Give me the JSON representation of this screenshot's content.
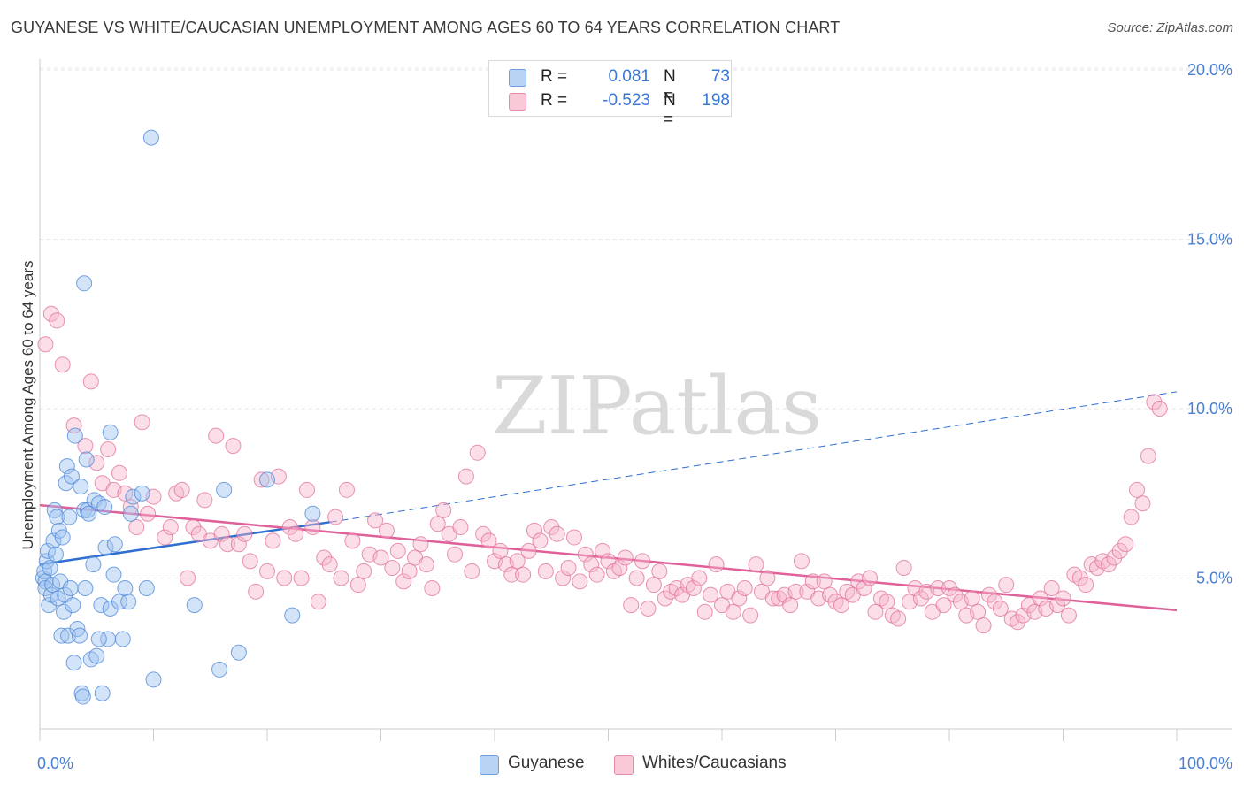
{
  "title": "GUYANESE VS WHITE/CAUCASIAN UNEMPLOYMENT AMONG AGES 60 TO 64 YEARS CORRELATION CHART",
  "source": "Source: ZipAtlas.com",
  "watermark": "ZIPatlas",
  "legend_top": {
    "rows": [
      {
        "r_label": "R =",
        "r_value": "0.081",
        "n_label": "N =",
        "n_value": "73",
        "color": "#a9c8f0",
        "border": "#6f9fe0"
      },
      {
        "r_label": "R =",
        "r_value": "-0.523",
        "n_label": "N =",
        "n_value": "198",
        "color": "#f7b9cc",
        "border": "#e88aa8"
      }
    ]
  },
  "legend_bottom": [
    {
      "label": "Guyanese",
      "color": "#b9d3f5",
      "border": "#6f9fe0"
    },
    {
      "label": "Whites/Caucasians",
      "color": "#f9c9d7",
      "border": "#e88aa8"
    }
  ],
  "chart_data": {
    "type": "scatter",
    "title": "GUYANESE VS WHITE/CAUCASIAN UNEMPLOYMENT AMONG AGES 60 TO 64 YEARS CORRELATION CHART",
    "xlabel": "",
    "ylabel": "Unemployment Among Ages 60 to 64 years",
    "xlim": [
      0,
      100
    ],
    "ylim": [
      0,
      20.5
    ],
    "x_tick_labels": [
      "0.0%",
      "100.0%"
    ],
    "y_ticks": [
      5,
      10,
      15,
      20
    ],
    "y_tick_labels": [
      "5.0%",
      "10.0%",
      "15.0%",
      "20.0%"
    ],
    "grid": true,
    "colors": {
      "guyanese": "#4a86d8",
      "guyanese_fill": "rgba(160,196,240,0.45)",
      "whites": "#e0709a",
      "whites_fill": "rgba(247,182,203,0.45)",
      "axis_text": "#4a7fd1"
    },
    "series": [
      {
        "name": "Guyanese",
        "trend": {
          "x": [
            0,
            25.5
          ],
          "y": [
            5.4,
            6.65
          ],
          "dashed_to": [
            100,
            10.5
          ]
        },
        "points": [
          [
            0.3,
            5.0
          ],
          [
            0.4,
            5.2
          ],
          [
            0.5,
            4.9
          ],
          [
            0.5,
            4.7
          ],
          [
            0.6,
            5.5
          ],
          [
            0.7,
            5.8
          ],
          [
            0.8,
            4.2
          ],
          [
            0.9,
            5.3
          ],
          [
            1.0,
            4.5
          ],
          [
            1.1,
            4.8
          ],
          [
            1.2,
            6.1
          ],
          [
            1.3,
            7.0
          ],
          [
            1.4,
            5.7
          ],
          [
            1.5,
            6.8
          ],
          [
            1.6,
            4.4
          ],
          [
            1.7,
            6.4
          ],
          [
            1.8,
            4.9
          ],
          [
            1.9,
            3.3
          ],
          [
            2.0,
            6.2
          ],
          [
            2.1,
            4.0
          ],
          [
            2.2,
            4.5
          ],
          [
            2.3,
            7.8
          ],
          [
            2.4,
            8.3
          ],
          [
            2.5,
            3.3
          ],
          [
            2.6,
            6.8
          ],
          [
            2.7,
            4.7
          ],
          [
            2.8,
            8.0
          ],
          [
            2.9,
            4.2
          ],
          [
            3.0,
            2.5
          ],
          [
            3.1,
            9.2
          ],
          [
            3.3,
            3.5
          ],
          [
            3.5,
            3.3
          ],
          [
            3.7,
            1.6
          ],
          [
            3.8,
            1.5
          ],
          [
            3.9,
            7.0
          ],
          [
            4.0,
            4.7
          ],
          [
            4.1,
            8.5
          ],
          [
            4.2,
            7.0
          ],
          [
            4.3,
            6.9
          ],
          [
            4.5,
            2.6
          ],
          [
            4.7,
            5.4
          ],
          [
            4.8,
            7.3
          ],
          [
            5.0,
            2.7
          ],
          [
            5.2,
            7.2
          ],
          [
            5.4,
            4.2
          ],
          [
            5.5,
            1.6
          ],
          [
            5.7,
            7.1
          ],
          [
            5.8,
            5.9
          ],
          [
            6.0,
            3.2
          ],
          [
            6.2,
            4.1
          ],
          [
            6.5,
            5.1
          ],
          [
            6.6,
            6.0
          ],
          [
            7.0,
            4.3
          ],
          [
            7.3,
            3.2
          ],
          [
            7.5,
            4.7
          ],
          [
            7.8,
            4.3
          ],
          [
            8.0,
            6.9
          ],
          [
            8.2,
            7.4
          ],
          [
            9.0,
            7.5
          ],
          [
            9.4,
            4.7
          ],
          [
            10.0,
            2.0
          ],
          [
            13.6,
            4.2
          ],
          [
            16.2,
            7.6
          ],
          [
            17.5,
            2.8
          ],
          [
            20.0,
            7.9
          ],
          [
            22.2,
            3.9
          ],
          [
            24.0,
            6.9
          ],
          [
            3.9,
            13.7
          ],
          [
            9.8,
            18.0
          ],
          [
            6.2,
            9.3
          ],
          [
            3.6,
            7.7
          ],
          [
            15.8,
            2.3
          ],
          [
            5.2,
            3.2
          ]
        ]
      },
      {
        "name": "Whites/Caucasians",
        "trend": {
          "x": [
            0,
            100
          ],
          "y": [
            7.15,
            4.05
          ]
        },
        "points": [
          [
            0.5,
            11.9
          ],
          [
            1.0,
            12.8
          ],
          [
            1.5,
            12.6
          ],
          [
            2.0,
            11.3
          ],
          [
            3.0,
            9.5
          ],
          [
            4.0,
            8.9
          ],
          [
            4.5,
            10.8
          ],
          [
            5.0,
            8.4
          ],
          [
            5.5,
            7.8
          ],
          [
            6.0,
            8.8
          ],
          [
            6.5,
            7.6
          ],
          [
            7.0,
            8.1
          ],
          [
            7.5,
            7.5
          ],
          [
            8.0,
            7.1
          ],
          [
            8.5,
            6.5
          ],
          [
            9.0,
            9.6
          ],
          [
            9.5,
            6.9
          ],
          [
            10.0,
            7.4
          ],
          [
            11.0,
            6.2
          ],
          [
            11.5,
            6.5
          ],
          [
            12.0,
            7.5
          ],
          [
            12.5,
            7.6
          ],
          [
            13.0,
            5.0
          ],
          [
            13.5,
            6.5
          ],
          [
            14.0,
            6.3
          ],
          [
            14.5,
            7.3
          ],
          [
            15.0,
            6.1
          ],
          [
            15.5,
            9.2
          ],
          [
            16.0,
            6.3
          ],
          [
            16.5,
            6.0
          ],
          [
            17.0,
            8.9
          ],
          [
            17.5,
            6.0
          ],
          [
            18.0,
            6.3
          ],
          [
            18.5,
            5.5
          ],
          [
            19.0,
            4.6
          ],
          [
            19.5,
            7.9
          ],
          [
            20.0,
            5.2
          ],
          [
            20.5,
            6.1
          ],
          [
            21.0,
            8.0
          ],
          [
            21.5,
            5.0
          ],
          [
            22.0,
            6.5
          ],
          [
            22.5,
            6.3
          ],
          [
            23.0,
            5.0
          ],
          [
            23.5,
            7.6
          ],
          [
            24.0,
            6.5
          ],
          [
            24.5,
            4.3
          ],
          [
            25.0,
            5.6
          ],
          [
            25.5,
            5.4
          ],
          [
            26.0,
            6.8
          ],
          [
            26.5,
            5.0
          ],
          [
            27.0,
            7.6
          ],
          [
            27.5,
            6.1
          ],
          [
            28.0,
            4.8
          ],
          [
            28.5,
            5.2
          ],
          [
            29.0,
            5.7
          ],
          [
            29.5,
            6.7
          ],
          [
            30.0,
            5.6
          ],
          [
            30.5,
            6.4
          ],
          [
            31.0,
            5.3
          ],
          [
            31.5,
            5.8
          ],
          [
            32.0,
            4.9
          ],
          [
            32.5,
            5.2
          ],
          [
            33.0,
            5.6
          ],
          [
            33.5,
            6.0
          ],
          [
            34.0,
            5.4
          ],
          [
            34.5,
            4.7
          ],
          [
            35.0,
            6.6
          ],
          [
            35.5,
            7.0
          ],
          [
            36.0,
            6.3
          ],
          [
            36.5,
            5.7
          ],
          [
            37.0,
            6.5
          ],
          [
            37.5,
            8.0
          ],
          [
            38.0,
            5.2
          ],
          [
            38.5,
            8.7
          ],
          [
            39.0,
            6.3
          ],
          [
            39.5,
            6.1
          ],
          [
            40.0,
            5.5
          ],
          [
            40.5,
            5.8
          ],
          [
            41.0,
            5.4
          ],
          [
            41.5,
            5.1
          ],
          [
            42.0,
            5.5
          ],
          [
            42.5,
            5.1
          ],
          [
            43.0,
            5.8
          ],
          [
            43.5,
            6.4
          ],
          [
            44.0,
            6.1
          ],
          [
            44.5,
            5.2
          ],
          [
            45.0,
            6.5
          ],
          [
            45.5,
            6.3
          ],
          [
            46.0,
            5.0
          ],
          [
            46.5,
            5.3
          ],
          [
            47.0,
            6.2
          ],
          [
            47.5,
            4.9
          ],
          [
            48.0,
            5.7
          ],
          [
            48.5,
            5.4
          ],
          [
            49.0,
            5.1
          ],
          [
            49.5,
            5.8
          ],
          [
            50.0,
            5.5
          ],
          [
            50.5,
            5.2
          ],
          [
            51.0,
            5.3
          ],
          [
            51.5,
            5.6
          ],
          [
            52.0,
            4.2
          ],
          [
            52.5,
            5.0
          ],
          [
            53.0,
            5.5
          ],
          [
            53.5,
            4.1
          ],
          [
            54.0,
            4.8
          ],
          [
            54.5,
            5.2
          ],
          [
            55.0,
            4.4
          ],
          [
            55.5,
            4.6
          ],
          [
            56.0,
            4.7
          ],
          [
            56.5,
            4.5
          ],
          [
            57.0,
            4.8
          ],
          [
            57.5,
            4.7
          ],
          [
            58.0,
            5.0
          ],
          [
            58.5,
            4.0
          ],
          [
            59.0,
            4.5
          ],
          [
            59.5,
            5.4
          ],
          [
            60.0,
            4.2
          ],
          [
            60.5,
            4.6
          ],
          [
            61.0,
            4.0
          ],
          [
            61.5,
            4.4
          ],
          [
            62.0,
            4.7
          ],
          [
            62.5,
            3.9
          ],
          [
            63.0,
            5.4
          ],
          [
            63.5,
            4.6
          ],
          [
            64.0,
            5.0
          ],
          [
            64.5,
            4.4
          ],
          [
            65.0,
            4.4
          ],
          [
            65.5,
            4.5
          ],
          [
            66.0,
            4.2
          ],
          [
            66.5,
            4.6
          ],
          [
            67.0,
            5.5
          ],
          [
            67.5,
            4.6
          ],
          [
            68.0,
            4.9
          ],
          [
            68.5,
            4.4
          ],
          [
            69.0,
            4.9
          ],
          [
            69.5,
            4.5
          ],
          [
            70.0,
            4.3
          ],
          [
            70.5,
            4.2
          ],
          [
            71.0,
            4.6
          ],
          [
            71.5,
            4.5
          ],
          [
            72.0,
            4.9
          ],
          [
            72.5,
            4.7
          ],
          [
            73.0,
            5.0
          ],
          [
            73.5,
            4.0
          ],
          [
            74.0,
            4.4
          ],
          [
            74.5,
            4.3
          ],
          [
            75.0,
            3.9
          ],
          [
            75.5,
            3.8
          ],
          [
            76.0,
            5.3
          ],
          [
            76.5,
            4.3
          ],
          [
            77.0,
            4.7
          ],
          [
            77.5,
            4.4
          ],
          [
            78.0,
            4.6
          ],
          [
            78.5,
            4.0
          ],
          [
            79.0,
            4.7
          ],
          [
            79.5,
            4.2
          ],
          [
            80.0,
            4.7
          ],
          [
            80.5,
            4.5
          ],
          [
            81.0,
            4.3
          ],
          [
            81.5,
            3.9
          ],
          [
            82.0,
            4.4
          ],
          [
            82.5,
            4.0
          ],
          [
            83.0,
            3.6
          ],
          [
            83.5,
            4.5
          ],
          [
            84.0,
            4.3
          ],
          [
            84.5,
            4.1
          ],
          [
            85.0,
            4.8
          ],
          [
            85.5,
            3.8
          ],
          [
            86.0,
            3.7
          ],
          [
            86.5,
            3.9
          ],
          [
            87.0,
            4.2
          ],
          [
            87.5,
            4.0
          ],
          [
            88.0,
            4.4
          ],
          [
            88.5,
            4.1
          ],
          [
            89.0,
            4.7
          ],
          [
            89.5,
            4.2
          ],
          [
            90.0,
            4.4
          ],
          [
            90.5,
            3.9
          ],
          [
            91.0,
            5.1
          ],
          [
            91.5,
            5.0
          ],
          [
            92.0,
            4.8
          ],
          [
            92.5,
            5.4
          ],
          [
            93.0,
            5.3
          ],
          [
            93.5,
            5.5
          ],
          [
            94.0,
            5.4
          ],
          [
            94.5,
            5.6
          ],
          [
            95.0,
            5.8
          ],
          [
            95.5,
            6.0
          ],
          [
            96.0,
            6.8
          ],
          [
            96.5,
            7.6
          ],
          [
            97.0,
            7.2
          ],
          [
            97.5,
            8.6
          ],
          [
            98.0,
            10.2
          ],
          [
            98.5,
            10.0
          ]
        ]
      }
    ]
  }
}
